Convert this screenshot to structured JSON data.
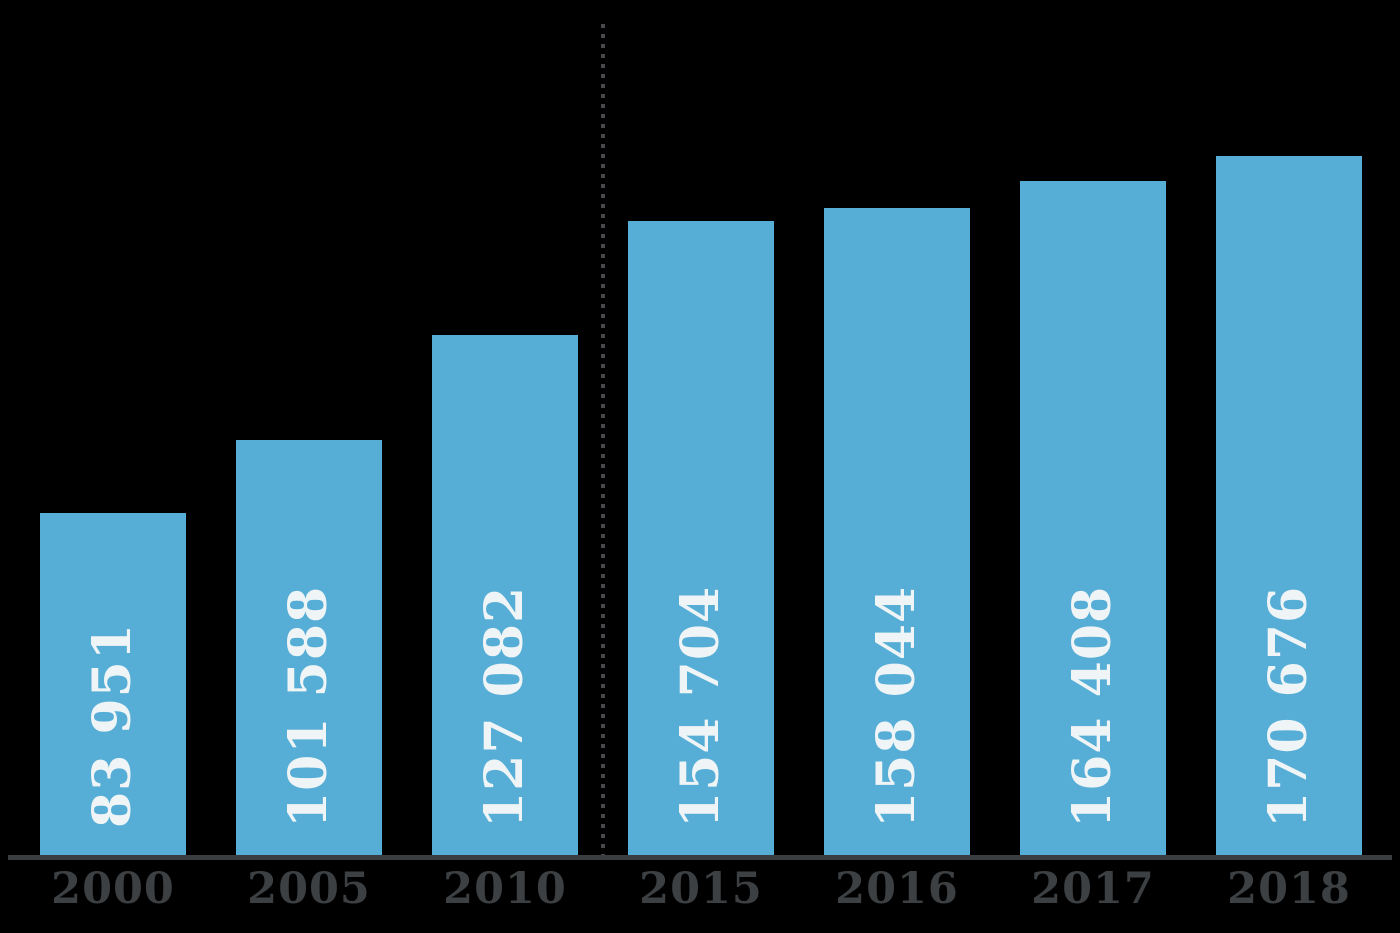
{
  "chart_data": {
    "type": "bar",
    "title": "",
    "subtitle": "",
    "xlabel": "",
    "ylabel": "",
    "categories": [
      "2000",
      "2005",
      "2010",
      "2015",
      "2016",
      "2017",
      "2018"
    ],
    "values": [
      83951,
      101588,
      127082,
      154704,
      158044,
      164408,
      170676
    ],
    "value_labels": [
      "83 951",
      "101 588",
      "127 082",
      "154 704",
      "158 044",
      "164 408",
      "170 676"
    ],
    "ylim": [
      0,
      208500
    ],
    "grid": false,
    "legend": "none",
    "value_label_style": "inside-bar-rotated-90-bottom",
    "separator": {
      "type": "vertical-dotted-line",
      "after_category": "2010",
      "before_category": "2015"
    }
  },
  "colors": {
    "background": "#000000",
    "bar_fill": "#56aed6",
    "value_label": "#eff4f6",
    "tick_label": "#3c4043",
    "axis_line": "#3a3d40",
    "separator_line": "#48494c"
  }
}
